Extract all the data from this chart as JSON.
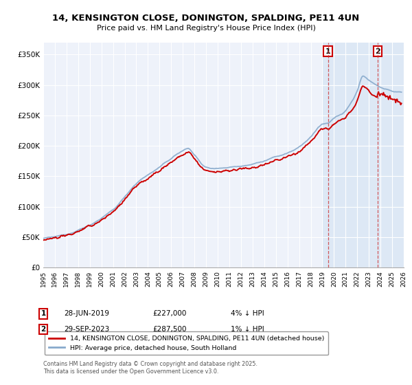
{
  "title": "14, KENSINGTON CLOSE, DONINGTON, SPALDING, PE11 4UN",
  "subtitle": "Price paid vs. HM Land Registry's House Price Index (HPI)",
  "legend_label_red": "14, KENSINGTON CLOSE, DONINGTON, SPALDING, PE11 4UN (detached house)",
  "legend_label_blue": "HPI: Average price, detached house, South Holland",
  "footer": "Contains HM Land Registry data © Crown copyright and database right 2025.\nThis data is licensed under the Open Government Licence v3.0.",
  "transaction1_date": "28-JUN-2019",
  "transaction1_price": "£227,000",
  "transaction1_hpi": "4% ↓ HPI",
  "transaction1_year": 2019.49,
  "transaction2_date": "29-SEP-2023",
  "transaction2_price": "£287,500",
  "transaction2_hpi": "1% ↓ HPI",
  "transaction2_year": 2023.75,
  "ylim": [
    0,
    370000
  ],
  "xlim_start": 1995,
  "xlim_end": 2026,
  "yticks": [
    0,
    50000,
    100000,
    150000,
    200000,
    250000,
    300000,
    350000
  ],
  "ytick_labels": [
    "£0",
    "£50K",
    "£100K",
    "£150K",
    "£200K",
    "£250K",
    "£300K",
    "£350K"
  ],
  "xticks": [
    1995,
    1996,
    1997,
    1998,
    1999,
    2000,
    2001,
    2002,
    2003,
    2004,
    2005,
    2006,
    2007,
    2008,
    2009,
    2010,
    2011,
    2012,
    2013,
    2014,
    2015,
    2016,
    2017,
    2018,
    2019,
    2020,
    2021,
    2022,
    2023,
    2024,
    2025,
    2026
  ],
  "bg_color": "#eef2fa",
  "red_color": "#cc0000",
  "blue_color": "#88aacc",
  "grid_color": "#ffffff",
  "shade_color": "#dde8f5"
}
